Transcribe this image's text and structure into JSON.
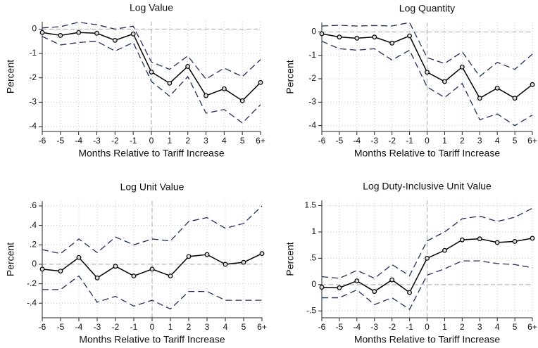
{
  "chart_data": [
    {
      "type": "line",
      "title": "Log Value",
      "xlabel": "Months Relative to Tariff Increase",
      "ylabel": "Percent",
      "categories": [
        "-6",
        "-5",
        "-4",
        "-3",
        "-2",
        "-1",
        "0",
        "1",
        "2",
        "3",
        "4",
        "5",
        "6+"
      ],
      "ylim": [
        -4.2,
        0.3
      ],
      "yticks": [
        -4,
        -3,
        -2,
        -1,
        0
      ],
      "grid": true,
      "hline": 0,
      "vline_at": "0",
      "series": [
        {
          "color": "#000000",
          "style": "solid",
          "markers": true,
          "values": [
            -0.14,
            -0.26,
            -0.14,
            -0.17,
            -0.46,
            -0.2,
            -1.76,
            -2.22,
            -1.53,
            -2.73,
            -2.45,
            -2.94,
            -2.19
          ]
        },
        {
          "color": "#1f2f5c",
          "style": "dashed",
          "markers": false,
          "values": [
            0.05,
            0.1,
            0.28,
            0.18,
            0.0,
            0.12,
            -1.35,
            -1.65,
            -1.1,
            -2.05,
            -1.6,
            -1.95,
            -1.25
          ]
        },
        {
          "color": "#1f2f5c",
          "style": "dashed",
          "markers": false,
          "values": [
            -0.3,
            -0.65,
            -0.55,
            -0.5,
            -0.9,
            -0.55,
            -2.15,
            -2.75,
            -1.95,
            -3.45,
            -3.3,
            -3.85,
            -3.1
          ]
        }
      ]
    },
    {
      "type": "line",
      "title": "Log Quantity",
      "xlabel": "Months Relative to Tariff Increase",
      "ylabel": "Percent",
      "categories": [
        "-6",
        "-5",
        "-4",
        "-3",
        "-2",
        "-1",
        "0",
        "1",
        "2",
        "3",
        "4",
        "5",
        "6+"
      ],
      "ylim": [
        -4.25,
        0.4
      ],
      "yticks": [
        -4,
        -3,
        -2,
        -1,
        0
      ],
      "grid": true,
      "hline": 0,
      "vline_at": "0",
      "series": [
        {
          "color": "#000000",
          "style": "solid",
          "markers": true,
          "values": [
            -0.08,
            -0.22,
            -0.27,
            -0.22,
            -0.48,
            -0.17,
            -1.72,
            -2.12,
            -1.5,
            -2.83,
            -2.4,
            -2.83,
            -2.25
          ]
        },
        {
          "color": "#1f2f5c",
          "style": "dashed",
          "markers": false,
          "values": [
            0.25,
            0.28,
            0.25,
            0.27,
            0.25,
            0.4,
            -1.1,
            -1.35,
            -0.85,
            -1.9,
            -1.3,
            -1.6,
            -0.95
          ]
        },
        {
          "color": "#1f2f5c",
          "style": "dashed",
          "markers": false,
          "values": [
            -0.4,
            -0.72,
            -0.78,
            -0.72,
            -1.2,
            -0.78,
            -2.35,
            -2.8,
            -2.2,
            -3.75,
            -3.5,
            -4.0,
            -3.55
          ]
        }
      ]
    },
    {
      "type": "line",
      "title": "Log Unit Value",
      "xlabel": "Months Relative to Tariff Increase",
      "ylabel": "Percent",
      "categories": [
        "-6",
        "-5",
        "-4",
        "-3",
        "-2",
        "-1",
        "0",
        "1",
        "2",
        "3",
        "4",
        "5",
        "6+"
      ],
      "ylim": [
        -0.55,
        0.65
      ],
      "yticks": [
        {
          "value": -0.4,
          "label": "-.4"
        },
        {
          "value": -0.2,
          "label": "-.2"
        },
        0,
        {
          "value": 0.2,
          "label": ".2"
        },
        {
          "value": 0.4,
          "label": ".4"
        },
        {
          "value": 0.6,
          "label": ".6"
        }
      ],
      "grid": true,
      "hline": 0,
      "vline_at": "0",
      "series": [
        {
          "color": "#000000",
          "style": "solid",
          "markers": true,
          "values": [
            -0.05,
            -0.07,
            0.07,
            -0.14,
            -0.02,
            -0.12,
            -0.05,
            -0.12,
            0.08,
            0.1,
            0.0,
            0.02,
            0.11
          ]
        },
        {
          "color": "#1f2f5c",
          "style": "dashed",
          "markers": false,
          "values": [
            0.15,
            0.11,
            0.26,
            0.12,
            0.28,
            0.2,
            0.26,
            0.24,
            0.44,
            0.48,
            0.37,
            0.42,
            0.6
          ]
        },
        {
          "color": "#1f2f5c",
          "style": "dashed",
          "markers": false,
          "values": [
            -0.26,
            -0.26,
            -0.12,
            -0.39,
            -0.33,
            -0.43,
            -0.37,
            -0.46,
            -0.28,
            -0.28,
            -0.37,
            -0.37,
            -0.37
          ]
        }
      ]
    },
    {
      "type": "line",
      "title": "Log Duty-Inclusive Unit Value",
      "xlabel": "Months Relative to Tariff Increase",
      "ylabel": "Percent",
      "categories": [
        "-6",
        "-5",
        "-4",
        "-3",
        "-2",
        "-1",
        "0",
        "1",
        "2",
        "3",
        "4",
        "5",
        "6+"
      ],
      "ylim": [
        -0.63,
        1.6
      ],
      "yticks": [
        {
          "value": -0.5,
          "label": "-.5"
        },
        0,
        {
          "value": 0.5,
          "label": ".5"
        },
        1,
        1.5
      ],
      "grid": true,
      "hline": 0,
      "vline_at": "0",
      "series": [
        {
          "color": "#000000",
          "style": "solid",
          "markers": true,
          "values": [
            -0.05,
            -0.06,
            0.07,
            -0.13,
            0.09,
            -0.15,
            0.5,
            0.65,
            0.85,
            0.87,
            0.8,
            0.82,
            0.88
          ]
        },
        {
          "color": "#1f2f5c",
          "style": "dashed",
          "markers": false,
          "values": [
            0.15,
            0.12,
            0.27,
            0.12,
            0.38,
            0.17,
            0.83,
            1.0,
            1.25,
            1.3,
            1.2,
            1.28,
            1.45
          ]
        },
        {
          "color": "#1f2f5c",
          "style": "dashed",
          "markers": false,
          "values": [
            -0.25,
            -0.25,
            -0.1,
            -0.38,
            -0.25,
            -0.47,
            0.18,
            0.3,
            0.45,
            0.45,
            0.4,
            0.38,
            0.32
          ]
        }
      ]
    }
  ]
}
